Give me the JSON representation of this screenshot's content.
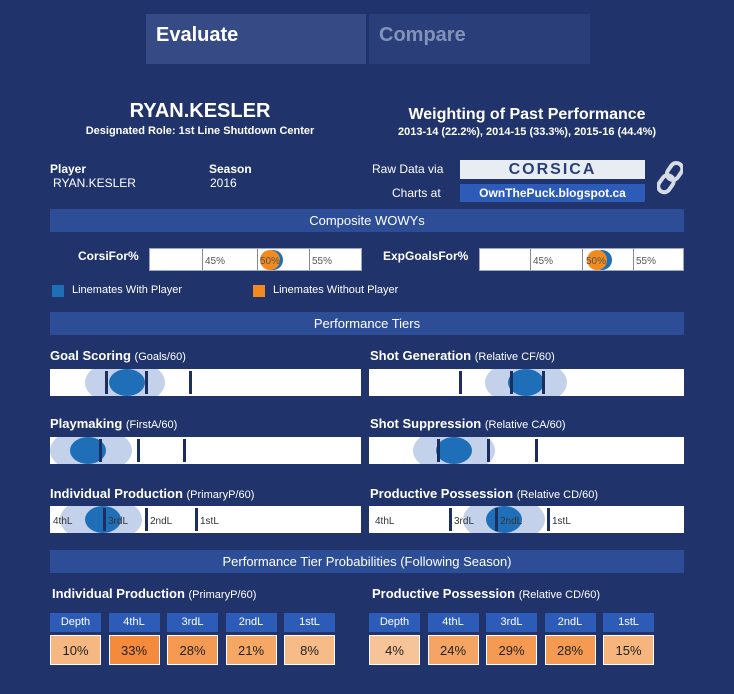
{
  "tabs": [
    {
      "label": "Evaluate",
      "active": true
    },
    {
      "label": "Compare",
      "active": false
    }
  ],
  "player": {
    "name": "RYAN.KESLER",
    "role": "Designated Role: 1st Line Shutdown Center",
    "player_label": "Player",
    "player_value": "RYAN.KESLER",
    "season_label": "Season",
    "season_value": "2016"
  },
  "weighting": {
    "title": "Weighting of Past Performance",
    "detail": "2013-14 (22.2%), 2014-15 (33.3%), 2015-16 (44.4%)"
  },
  "sources": {
    "raw_label": "Raw Data via",
    "raw_logo": "CORSICA",
    "charts_label": "Charts at",
    "charts_link": "OwnThePuck.blogspot.ca",
    "link_icon": "chain-link-icon"
  },
  "composite": {
    "title": "Composite WOWYs",
    "metrics": [
      {
        "label": "CorsiFor%",
        "ticks": [
          "45%",
          "50%",
          "55%"
        ],
        "with_player": 50.6,
        "without_player": 50.1
      },
      {
        "label": "ExpGoalsFor%",
        "ticks": [
          "45%",
          "50%",
          "55%"
        ],
        "with_player": 50.4,
        "without_player": 50.0
      }
    ],
    "legend": [
      {
        "label": "Linemates With Player",
        "color": "#1f6fb8"
      },
      {
        "label": "Linemates Without Player",
        "color": "#f28a1e"
      }
    ]
  },
  "tiers": {
    "title": "Performance Tiers",
    "panels": [
      {
        "title": "Goal Scoring",
        "unit": "(Goals/60)"
      },
      {
        "title": "Shot Generation",
        "unit": "(Relative CF/60)"
      },
      {
        "title": "Playmaking",
        "unit": "(FirstA/60)"
      },
      {
        "title": "Shot Suppression",
        "unit": "(Relative CA/60)"
      },
      {
        "title": "Individual Production",
        "unit": "(PrimaryP/60)",
        "tier_labels": [
          "4thL",
          "3rdL",
          "2ndL",
          "1stL"
        ]
      },
      {
        "title": "Productive Possession",
        "unit": "(Relative CD/60)",
        "tier_labels": [
          "4thL",
          "3rdL",
          "2ndL",
          "1stL"
        ]
      }
    ]
  },
  "probabilities": {
    "title": "Performance Tier Probabilities (Following Season)",
    "headers": [
      "Depth",
      "4thL",
      "3rdL",
      "2ndL",
      "1stL"
    ],
    "groups": [
      {
        "title": "Individual Production",
        "unit": "(PrimaryP/60)",
        "values": [
          "10%",
          "33%",
          "28%",
          "21%",
          "8%"
        ],
        "colors": [
          "#f6b882",
          "#f48a3c",
          "#f49a52",
          "#f5a866",
          "#f6bb87"
        ]
      },
      {
        "title": "Productive Possession",
        "unit": "(Relative CD/60)",
        "values": [
          "4%",
          "24%",
          "29%",
          "28%",
          "15%"
        ],
        "colors": [
          "#f7c49a",
          "#f5a463",
          "#f49a52",
          "#f49a52",
          "#f6b57d"
        ]
      }
    ]
  }
}
